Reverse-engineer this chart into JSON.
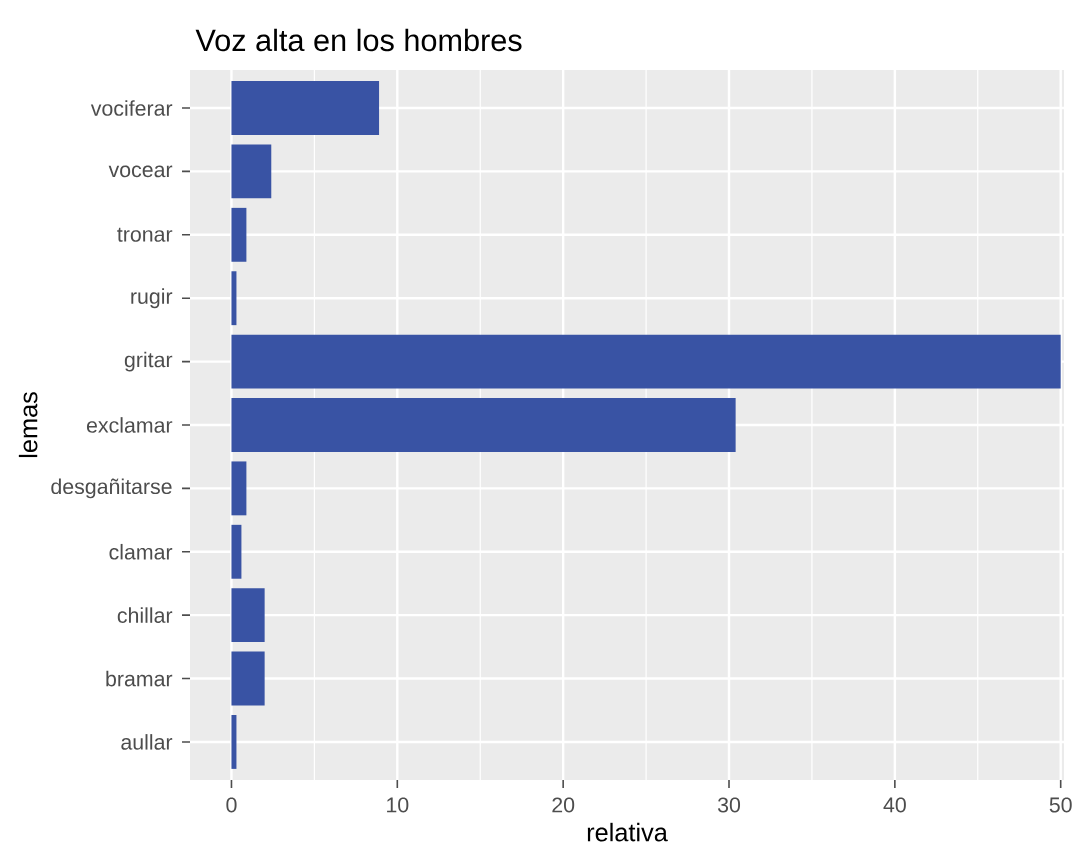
{
  "chart_data": {
    "type": "bar",
    "orientation": "horizontal",
    "title": "Voz alta en los hombres",
    "xlabel": "relativa",
    "ylabel": "lemas",
    "categories": [
      "vociferar",
      "vocear",
      "tronar",
      "rugir",
      "gritar",
      "exclamar",
      "desgañitarse",
      "clamar",
      "chillar",
      "bramar",
      "aullar"
    ],
    "values": [
      8.9,
      2.4,
      0.9,
      0.3,
      50,
      30.4,
      0.9,
      0.6,
      2.0,
      2.0,
      0.3
    ],
    "color": "#3953a4",
    "xlim": [
      -2.5,
      50.2
    ],
    "xticks": [
      0,
      10,
      20,
      30,
      40,
      50
    ],
    "grid": true
  }
}
